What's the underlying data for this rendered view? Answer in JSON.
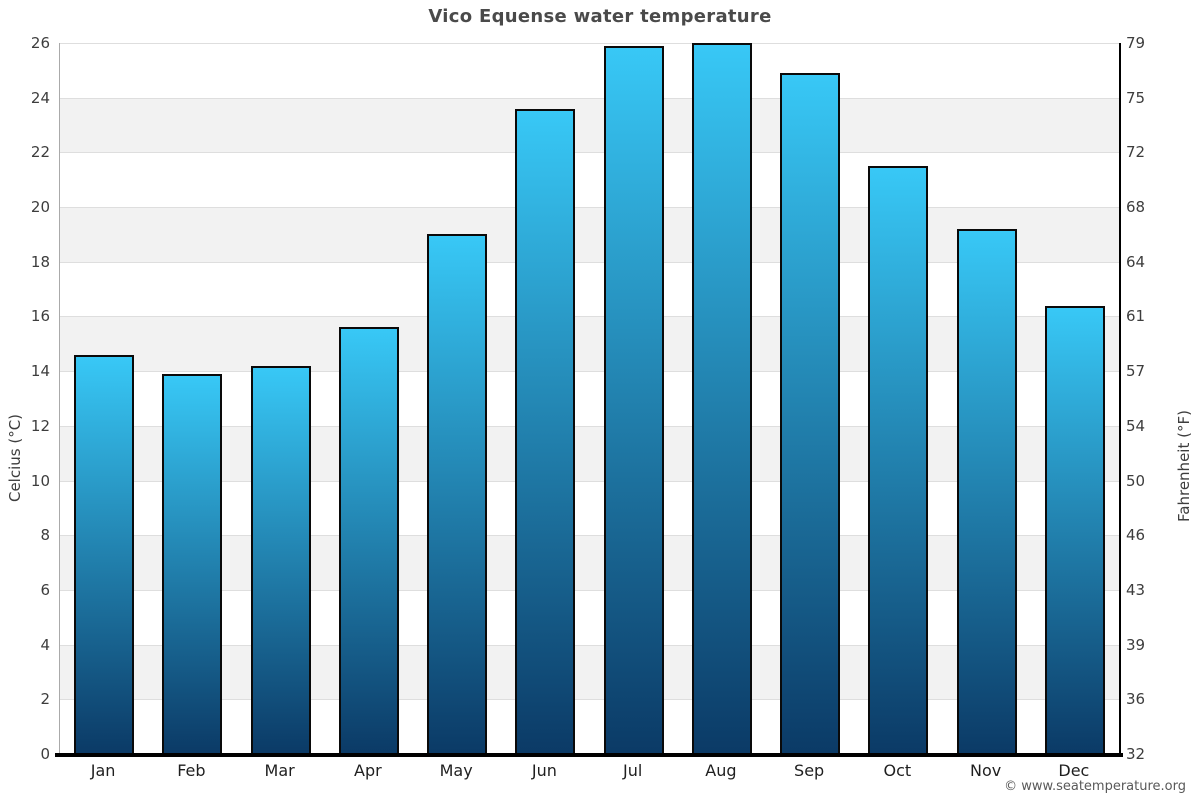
{
  "page": {
    "title": "Vico Equense water temperature",
    "footer": "© www.seatemperature.org"
  },
  "chart_data": {
    "type": "bar",
    "title": "Vico Equense water temperature",
    "categories": [
      "Jan",
      "Feb",
      "Mar",
      "Apr",
      "May",
      "Jun",
      "Jul",
      "Aug",
      "Sep",
      "Oct",
      "Nov",
      "Dec"
    ],
    "series": [
      {
        "name": "Water temperature (°C)",
        "values": [
          14.6,
          13.9,
          14.2,
          15.6,
          19.0,
          23.6,
          25.9,
          26.0,
          24.9,
          21.5,
          19.2,
          16.4
        ]
      }
    ],
    "ylabel_left": "Celcius (°C)",
    "ylabel_right": "Fahrenheit (°F)",
    "ylim": [
      0,
      26
    ],
    "yticks_celsius": [
      0,
      2,
      4,
      6,
      8,
      10,
      12,
      14,
      16,
      18,
      20,
      22,
      24,
      26
    ],
    "yticks_fahrenheit_labels": [
      "32",
      "36",
      "39",
      "43",
      "46",
      "50",
      "54",
      "57",
      "61",
      "64",
      "68",
      "72",
      "75",
      "79"
    ],
    "grid": "horizontal gridlines every 2°C with alternating shaded bands",
    "legend": "none",
    "colors": {
      "bar_gradient_top": "#38c8f6",
      "bar_gradient_bottom": "#0b3a66",
      "bar_border": "#0a0a0a",
      "band_shade": "#f2f2f2",
      "band_plain": "#ffffff",
      "gridline": "#dedede",
      "bottom_axis": "#000000",
      "left_axis_line": "#aaaaaa",
      "right_axis_line": "#000000",
      "title_text": "#4a4a4a",
      "tick_text": "#3d3d3d",
      "month_text": "#1f1f1f",
      "footer_text": "#595959"
    }
  }
}
